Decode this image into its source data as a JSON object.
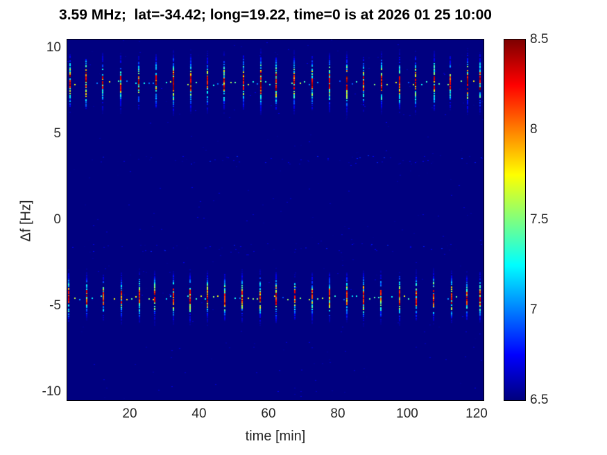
{
  "title": "3.59 MHz;  lat=-34.42; long=19.22, time=0 is at 2026 01 25 10:00",
  "chart_data": {
    "type": "heatmap",
    "title": "3.59 MHz;  lat=-34.42; long=19.22, time=0 is at 2026 01 25 10:00",
    "xlabel": "time [min]",
    "ylabel": "Δf [Hz]",
    "xlim": [
      2,
      122
    ],
    "ylim": [
      -10.5,
      10.5
    ],
    "x_ticks": [
      20,
      40,
      60,
      80,
      100,
      120
    ],
    "y_ticks": [
      10,
      5,
      0,
      -5,
      -10
    ],
    "grid": false,
    "legend": "none",
    "colorbar": {
      "position": "right",
      "colormap": "jet",
      "min": 6.5,
      "max": 8.5,
      "ticks": [
        8.5,
        8,
        7.5,
        7,
        6.5
      ]
    },
    "background_value": 6.5,
    "description": "Doppler spectrogram: dark-blue background at 6.5 with periodic vertical burst streaks (period ~5 min) in two frequency bands near +8 Hz and -4.5 Hz; streak cores reach ~8.5 (dark red), edges ~7 (cyan/blue); faint cyan dots along band centers between bursts",
    "streaks": {
      "times_min": [
        2.5,
        7.5,
        12.5,
        17.5,
        22.5,
        27.5,
        32.5,
        37.5,
        42.5,
        47.5,
        52.5,
        57.5,
        62.5,
        67.5,
        72.5,
        77.5,
        82.5,
        87.5,
        92.5,
        97.5,
        102.5,
        107.5,
        112.5,
        117.5,
        121
      ],
      "bands": [
        {
          "center_hz": 8.0,
          "sigma_hz": 0.7,
          "peak_value": 8.5
        },
        {
          "center_hz": -4.5,
          "sigma_hz": 0.6,
          "peak_value": 8.4
        }
      ],
      "faint_rows_hz": [
        3.5,
        -1.6
      ]
    }
  },
  "icons": {}
}
